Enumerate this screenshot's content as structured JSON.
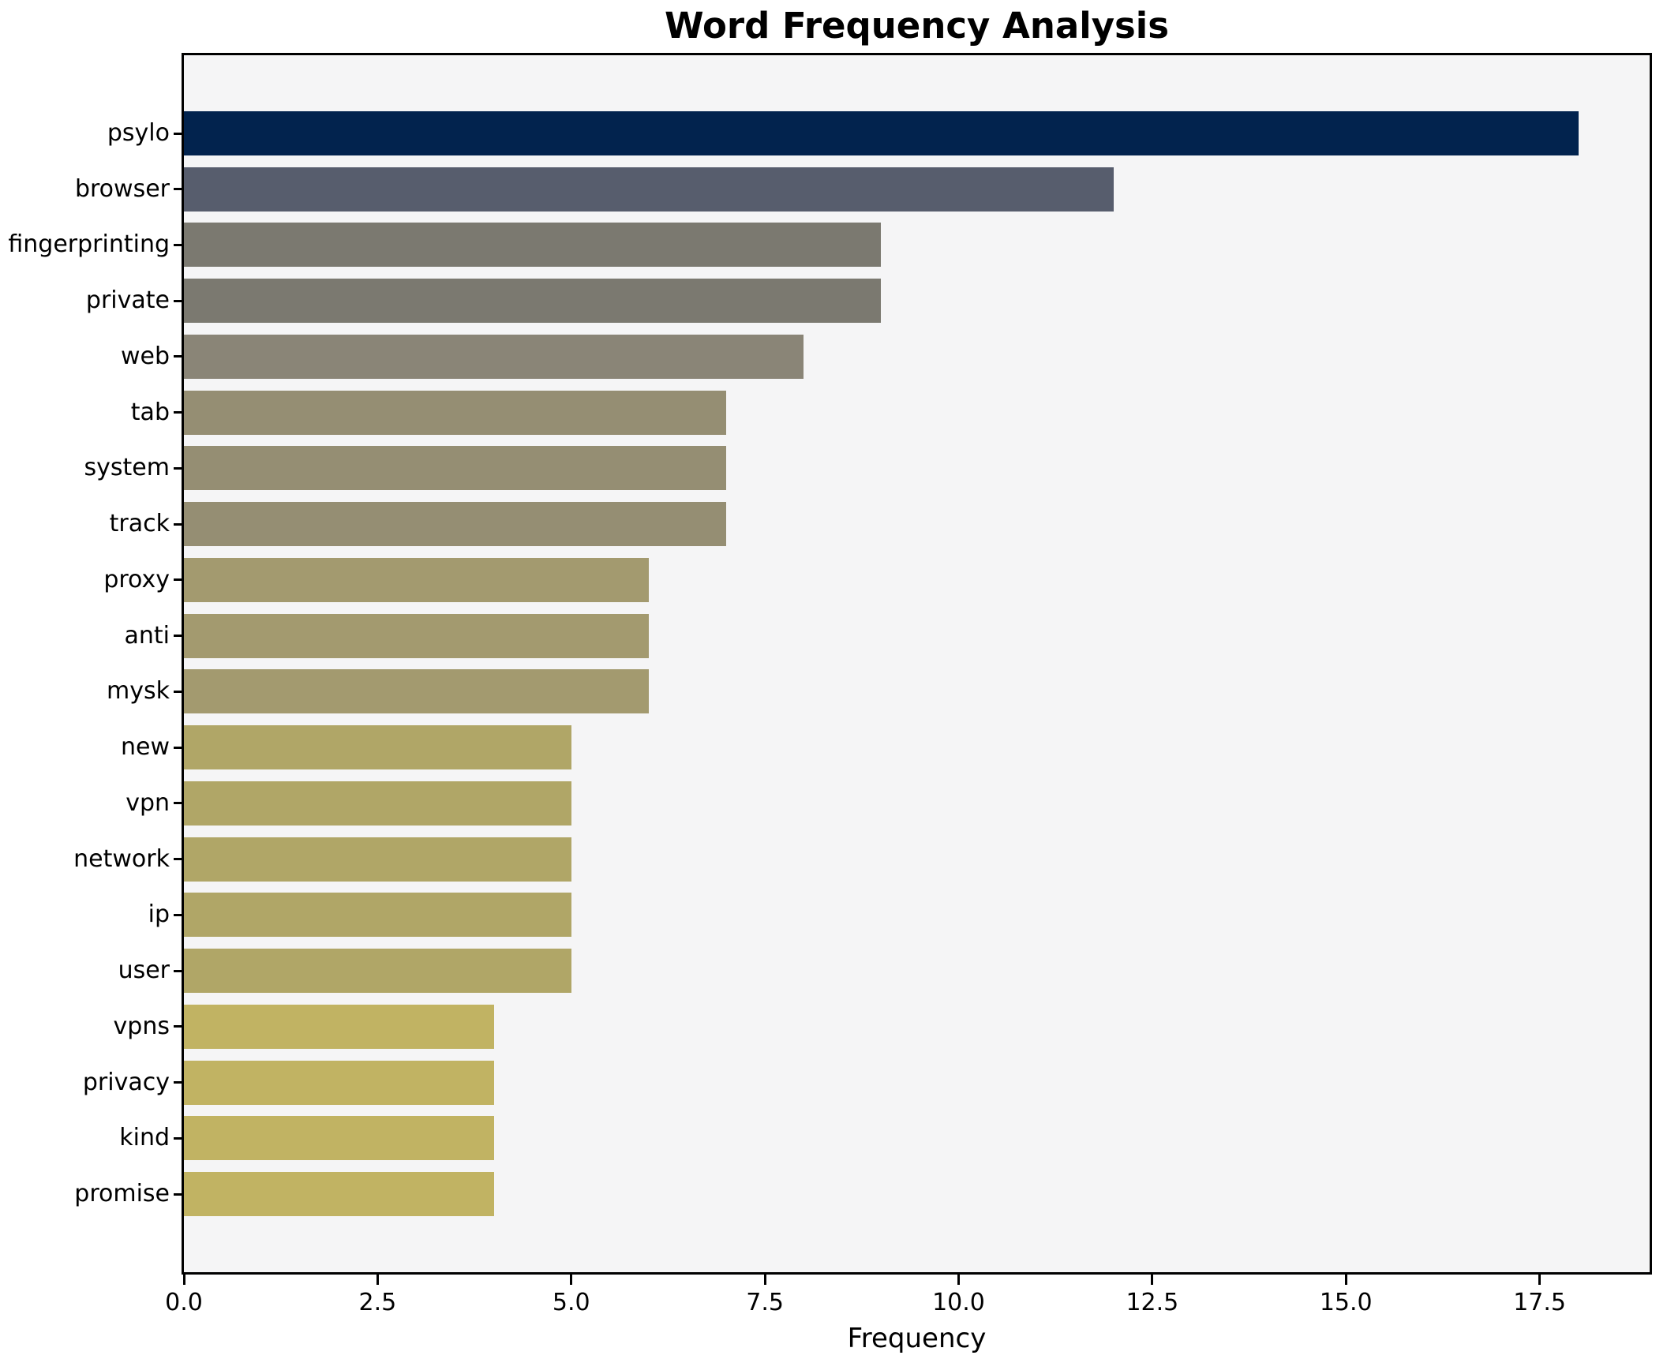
{
  "chart_data": {
    "type": "bar",
    "orientation": "horizontal",
    "title": "Word Frequency Analysis",
    "xlabel": "Frequency",
    "ylabel": "",
    "categories": [
      "psylo",
      "browser",
      "fingerprinting",
      "private",
      "web",
      "tab",
      "system",
      "track",
      "proxy",
      "anti",
      "mysk",
      "new",
      "vpn",
      "network",
      "ip",
      "user",
      "vpns",
      "privacy",
      "kind",
      "promise"
    ],
    "values": [
      18,
      12,
      9,
      9,
      8,
      7,
      7,
      7,
      6,
      6,
      6,
      5,
      5,
      5,
      5,
      5,
      4,
      4,
      4,
      4
    ],
    "bar_colors": [
      "#02234e",
      "#575d6d",
      "#7b7970",
      "#7b7970",
      "#8a8577",
      "#958e73",
      "#958e73",
      "#958e73",
      "#a39a6f",
      "#a39a6f",
      "#a39a6f",
      "#b0a667",
      "#b0a667",
      "#b0a667",
      "#b0a667",
      "#b0a667",
      "#c1b363",
      "#c1b363",
      "#c1b363",
      "#c1b363"
    ],
    "xlim": [
      0,
      18.92
    ],
    "xticks": [
      0,
      2.5,
      5,
      7.5,
      10,
      12.5,
      15,
      17.5
    ],
    "xtick_labels": [
      "0.0",
      "2.5",
      "5.0",
      "7.5",
      "10.0",
      "12.5",
      "15.0",
      "17.5"
    ],
    "grid": false,
    "legend": "none",
    "plot_background": "#f5f5f6",
    "figure_background": "#ffffff",
    "spine_color": "#000000"
  }
}
